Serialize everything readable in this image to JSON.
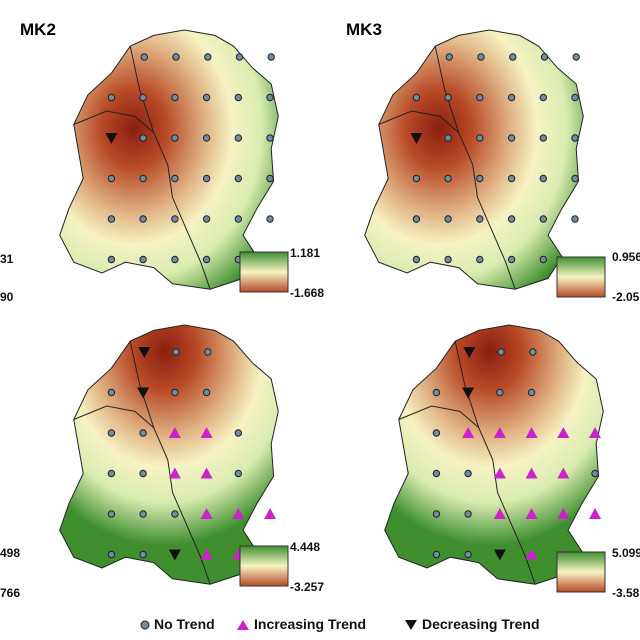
{
  "panels": [
    {
      "title": "MK2",
      "legend_high": "1.181",
      "legend_low": "-1.668",
      "left_cut_top": "31",
      "left_cut_bottom": "90",
      "hot_center": [
        0.34,
        0.38
      ],
      "grid": [
        [
          "n",
          "n",
          "n",
          "n",
          "n"
        ],
        [
          "n",
          "n",
          "n",
          "n",
          "n",
          "n"
        ],
        [
          "d",
          "n",
          "n",
          "n",
          "n",
          "n"
        ],
        [
          "n",
          "n",
          "n",
          "n",
          "n",
          "n"
        ],
        [
          "n",
          "n",
          "n",
          "n",
          "n",
          "n"
        ],
        [
          "n",
          "n",
          "n",
          "n",
          "n"
        ]
      ]
    },
    {
      "title": "MK3",
      "legend_high": "0.956",
      "legend_low": "-2.051",
      "hot_center": [
        0.34,
        0.38
      ],
      "grid": [
        [
          "n",
          "n",
          "n",
          "n",
          "n"
        ],
        [
          "n",
          "n",
          "n",
          "n",
          "n",
          "n"
        ],
        [
          "d",
          "n",
          "n",
          "n",
          "n",
          "n"
        ],
        [
          "n",
          "n",
          "n",
          "n",
          "n",
          "n"
        ],
        [
          "n",
          "n",
          "n",
          "n",
          "n",
          "n"
        ],
        [
          "n",
          "n",
          "n",
          "n",
          "n"
        ]
      ]
    },
    {
      "title": "",
      "legend_high": "4.448",
      "legend_low": "-3.257",
      "left_cut_top": "498",
      "left_cut_bottom": "766",
      "hot_center": [
        0.48,
        0.1
      ],
      "grid": [
        [
          "d",
          "n",
          "n"
        ],
        [
          "n",
          "d",
          "n",
          "n"
        ],
        [
          "n",
          "n",
          "i",
          "i",
          "n"
        ],
        [
          "n",
          "n",
          "i",
          "i",
          "n"
        ],
        [
          "n",
          "n",
          "n",
          "i",
          "i",
          "i"
        ],
        [
          "n",
          "n",
          "d",
          "i",
          "i"
        ]
      ]
    },
    {
      "title": "",
      "legend_high": "5.099",
      "legend_low": "-3.58",
      "hot_center": [
        0.48,
        0.1
      ],
      "grid": [
        [
          "d",
          "n",
          "n"
        ],
        [
          "n",
          "d",
          "n",
          "n"
        ],
        [
          "n",
          "i",
          "i",
          "i",
          "i",
          "i"
        ],
        [
          "n",
          "n",
          "i",
          "i",
          "i",
          "n"
        ],
        [
          "n",
          "n",
          "i",
          "i",
          "i",
          "i"
        ],
        [
          "n",
          "n",
          "d",
          "i",
          "i"
        ]
      ]
    }
  ],
  "legend": {
    "no_trend": "No Trend",
    "increasing": "Increasing Trend",
    "decreasing": "Decreasing Trend"
  },
  "colors": {
    "green_dark": "#3f8f2f",
    "green_light": "#d9ebb0",
    "yellow": "#f6f3c4",
    "brown": "#b84a26",
    "brown_dark": "#8a1f10",
    "marker_increase": "#cc22cc",
    "marker_decrease": "#111111",
    "dot_fill": "#6e8ca8"
  }
}
